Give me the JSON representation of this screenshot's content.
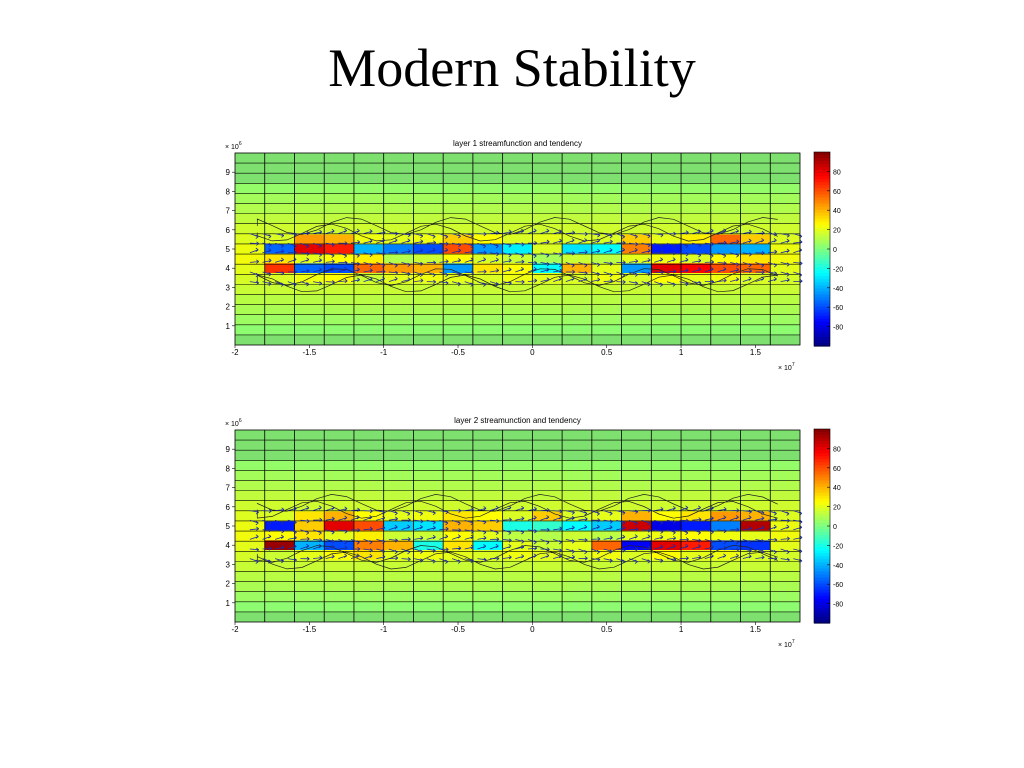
{
  "slide": {
    "title": "Modern Stability"
  },
  "colorbar_scale": {
    "min": -100,
    "max": 100,
    "colormap": "jet",
    "tick_values": [
      -80,
      -60,
      -40,
      -20,
      0,
      20,
      40,
      60,
      80
    ],
    "tick_labels": [
      "-80",
      "-60",
      "-40",
      "-20",
      "0",
      "20",
      "40",
      "60",
      "80"
    ]
  },
  "colors": {
    "field_background": "#7ee06e",
    "grid_line": "#000000",
    "vector": "#1a2aa8",
    "contour": "#222222"
  },
  "chart_data": [
    {
      "type": "heatmap",
      "title": "layer 1 streamfunction and tendency",
      "x_multiplier": "× 10^7",
      "y_multiplier": "× 10^6",
      "xlim": [
        -2,
        1.8
      ],
      "ylim": [
        0,
        10
      ],
      "x_ticks": [
        -2,
        -1.5,
        -1,
        -0.5,
        0,
        0.5,
        1,
        1.5
      ],
      "x_tick_labels": [
        "-2",
        "-1.5",
        "-1",
        "-0.5",
        "0",
        "0.5",
        "1",
        "1.5"
      ],
      "y_ticks": [
        1,
        2,
        3,
        4,
        5,
        6,
        7,
        8,
        9
      ],
      "y_tick_labels": [
        "1",
        "2",
        "3",
        "4",
        "5",
        "6",
        "7",
        "8",
        "9"
      ],
      "grid": true,
      "overlays": [
        "streamfunction contours",
        "tendency vectors"
      ],
      "colorbar": "right",
      "band_rows_y": [
        5.5,
        5.0,
        4.5,
        4.0,
        3.5
      ],
      "band_values": [
        [
          18,
          45,
          40,
          22,
          20,
          22,
          35,
          25,
          18,
          20,
          18,
          18,
          35,
          20,
          28,
          55,
          35
        ],
        [
          -55,
          80,
          70,
          -40,
          -50,
          -60,
          60,
          -45,
          -28,
          18,
          -30,
          -25,
          50,
          -70,
          -60,
          -45,
          -40
        ],
        [
          30,
          20,
          25,
          28,
          10,
          15,
          25,
          18,
          15,
          8,
          15,
          12,
          20,
          22,
          18,
          25,
          30
        ],
        [
          65,
          -55,
          -60,
          55,
          45,
          40,
          -45,
          30,
          25,
          -25,
          40,
          20,
          -45,
          80,
          75,
          60,
          55
        ],
        [
          18,
          22,
          25,
          15,
          20,
          22,
          20,
          18,
          22,
          20,
          18,
          22,
          18,
          25,
          20,
          22,
          18
        ]
      ]
    },
    {
      "type": "heatmap",
      "title": "layer 2 streamunction and tendency",
      "x_multiplier": "× 10^7",
      "y_multiplier": "× 10^6",
      "xlim": [
        -2,
        1.8
      ],
      "ylim": [
        0,
        10
      ],
      "x_ticks": [
        -2,
        -1.5,
        -1,
        -0.5,
        0,
        0.5,
        1,
        1.5
      ],
      "x_tick_labels": [
        "-2",
        "-1.5",
        "-1",
        "-0.5",
        "0",
        "0.5",
        "1",
        "1.5"
      ],
      "y_ticks": [
        1,
        2,
        3,
        4,
        5,
        6,
        7,
        8,
        9
      ],
      "y_tick_labels": [
        "1",
        "2",
        "3",
        "4",
        "5",
        "6",
        "7",
        "8",
        "9"
      ],
      "grid": true,
      "overlays": [
        "streamfunction contours",
        "tendency vectors"
      ],
      "colorbar": "right",
      "band_rows_y": [
        5.5,
        5.0,
        4.5,
        4.0,
        3.5
      ],
      "band_values": [
        [
          18,
          30,
          40,
          25,
          20,
          22,
          30,
          25,
          18,
          35,
          18,
          20,
          40,
          25,
          30,
          45,
          40
        ],
        [
          -70,
          35,
          80,
          60,
          -35,
          -30,
          40,
          35,
          -20,
          -15,
          -25,
          -35,
          85,
          -80,
          -70,
          -50,
          90
        ],
        [
          25,
          30,
          20,
          28,
          15,
          15,
          25,
          20,
          12,
          10,
          15,
          12,
          20,
          22,
          25,
          22,
          20
        ],
        [
          95,
          -40,
          -60,
          50,
          40,
          -20,
          30,
          -25,
          20,
          15,
          20,
          55,
          -75,
          80,
          70,
          -60,
          -65
        ],
        [
          15,
          20,
          25,
          30,
          20,
          22,
          20,
          18,
          22,
          20,
          18,
          22,
          18,
          25,
          20,
          22,
          18
        ]
      ]
    }
  ]
}
